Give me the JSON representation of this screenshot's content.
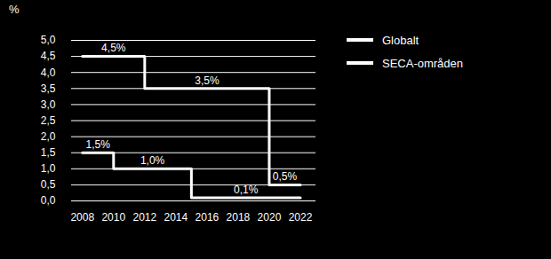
{
  "chart_data": {
    "type": "line",
    "ylabel": "%",
    "xlim": [
      2007.3,
      2023
    ],
    "xticks": [
      2008,
      2010,
      2012,
      2014,
      2016,
      2018,
      2020,
      2022
    ],
    "ylim": [
      0,
      5
    ],
    "yticks": [
      {
        "value": 0,
        "label": "0,0"
      },
      {
        "value": 0.5,
        "label": "0,5"
      },
      {
        "value": 1,
        "label": "1,0"
      },
      {
        "value": 1.5,
        "label": "1,5"
      },
      {
        "value": 2,
        "label": "2,0"
      },
      {
        "value": 2.5,
        "label": "2,5"
      },
      {
        "value": 3,
        "label": "3,0"
      },
      {
        "value": 3.5,
        "label": "3,5"
      },
      {
        "value": 4,
        "label": "4,0"
      },
      {
        "value": 4.5,
        "label": "4,5"
      },
      {
        "value": 5,
        "label": "5,0"
      }
    ],
    "grid": true,
    "data_labels": true,
    "legend": "right",
    "line_style": "step",
    "series": [
      {
        "name": "Globalt",
        "color": "#ffffff",
        "x": [
          2008,
          2012,
          2020,
          2022
        ],
        "values": [
          4.5,
          3.5,
          0.5,
          0.5
        ],
        "value_labels": [
          "4,5%",
          "3,5%",
          "0,5%",
          null
        ]
      },
      {
        "name": "SECA-områden",
        "color": "#ffffff",
        "x": [
          2008,
          2010,
          2015,
          2022
        ],
        "values": [
          1.5,
          1.0,
          0.1,
          0.1
        ],
        "value_labels": [
          "1,5%",
          "1,0%",
          "0,1%",
          null
        ]
      }
    ]
  }
}
